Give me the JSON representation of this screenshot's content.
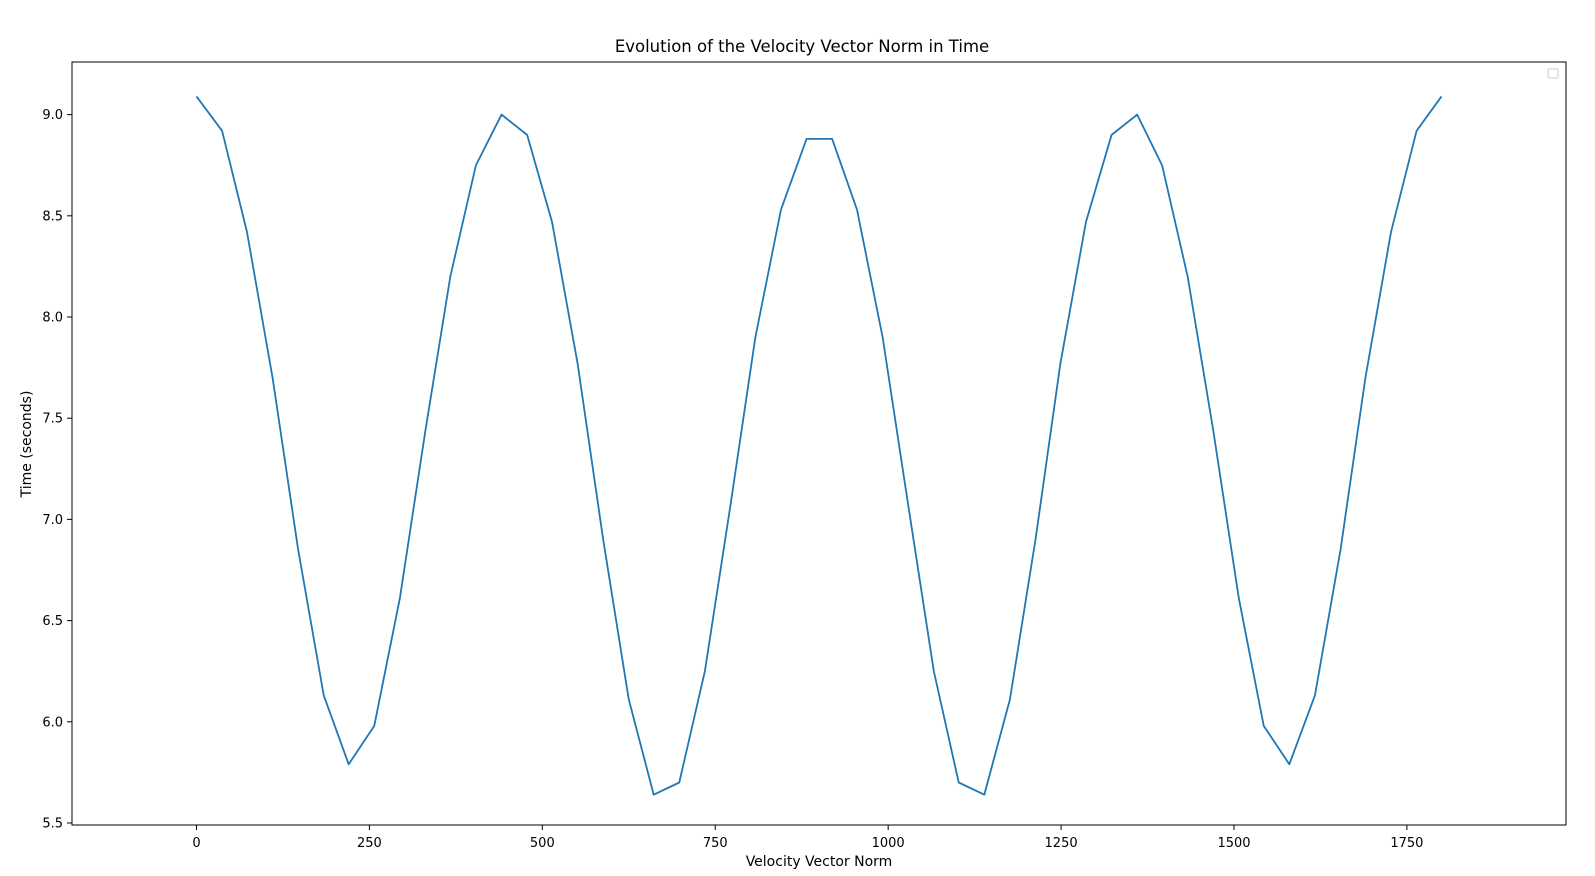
{
  "chart_data": {
    "type": "line",
    "title": "Evolution of the Velocity Vector Norm in Time",
    "xlabel": "Velocity Vector Norm",
    "ylabel": "Time (seconds)",
    "xlim": [
      -180,
      1980
    ],
    "ylim": [
      5.49,
      9.26
    ],
    "xticks": [
      0,
      250,
      500,
      750,
      1000,
      1250,
      1500,
      1750
    ],
    "xtick_labels": [
      "0",
      "250",
      "500",
      "750",
      "1000",
      "1250",
      "1500",
      "1750"
    ],
    "yticks": [
      5.5,
      6.0,
      6.5,
      7.0,
      7.5,
      8.0,
      8.5,
      9.0
    ],
    "ytick_labels": [
      "5.5",
      "6.0",
      "6.5",
      "7.0",
      "7.5",
      "8.0",
      "8.5",
      "9.0"
    ],
    "grid": false,
    "legend": "top-right (empty)",
    "series": [
      {
        "color": "#1f77b4",
        "x": [
          0,
          37,
          73,
          110,
          147,
          184,
          220,
          257,
          294,
          331,
          367,
          404,
          441,
          478,
          514,
          551,
          588,
          625,
          661,
          698,
          735,
          772,
          808,
          845,
          882,
          919,
          955,
          992,
          1029,
          1066,
          1102,
          1139,
          1176,
          1213,
          1249,
          1286,
          1323,
          1360,
          1396,
          1433,
          1470,
          1507,
          1543,
          1580,
          1617,
          1654,
          1690,
          1727,
          1764,
          1800
        ],
        "y": [
          9.09,
          8.92,
          8.42,
          7.7,
          6.85,
          6.13,
          5.79,
          5.98,
          6.61,
          7.44,
          8.2,
          8.75,
          9.0,
          8.9,
          8.47,
          7.77,
          6.9,
          6.11,
          5.64,
          5.7,
          6.25,
          7.07,
          7.9,
          8.53,
          8.88,
          8.88,
          8.53,
          7.9,
          7.07,
          6.25,
          5.7,
          5.64,
          6.11,
          6.9,
          7.77,
          8.47,
          8.9,
          9.0,
          8.75,
          8.2,
          7.44,
          6.61,
          5.98,
          5.79,
          6.13,
          6.85,
          7.7,
          8.42,
          8.92,
          9.09
        ]
      }
    ]
  }
}
